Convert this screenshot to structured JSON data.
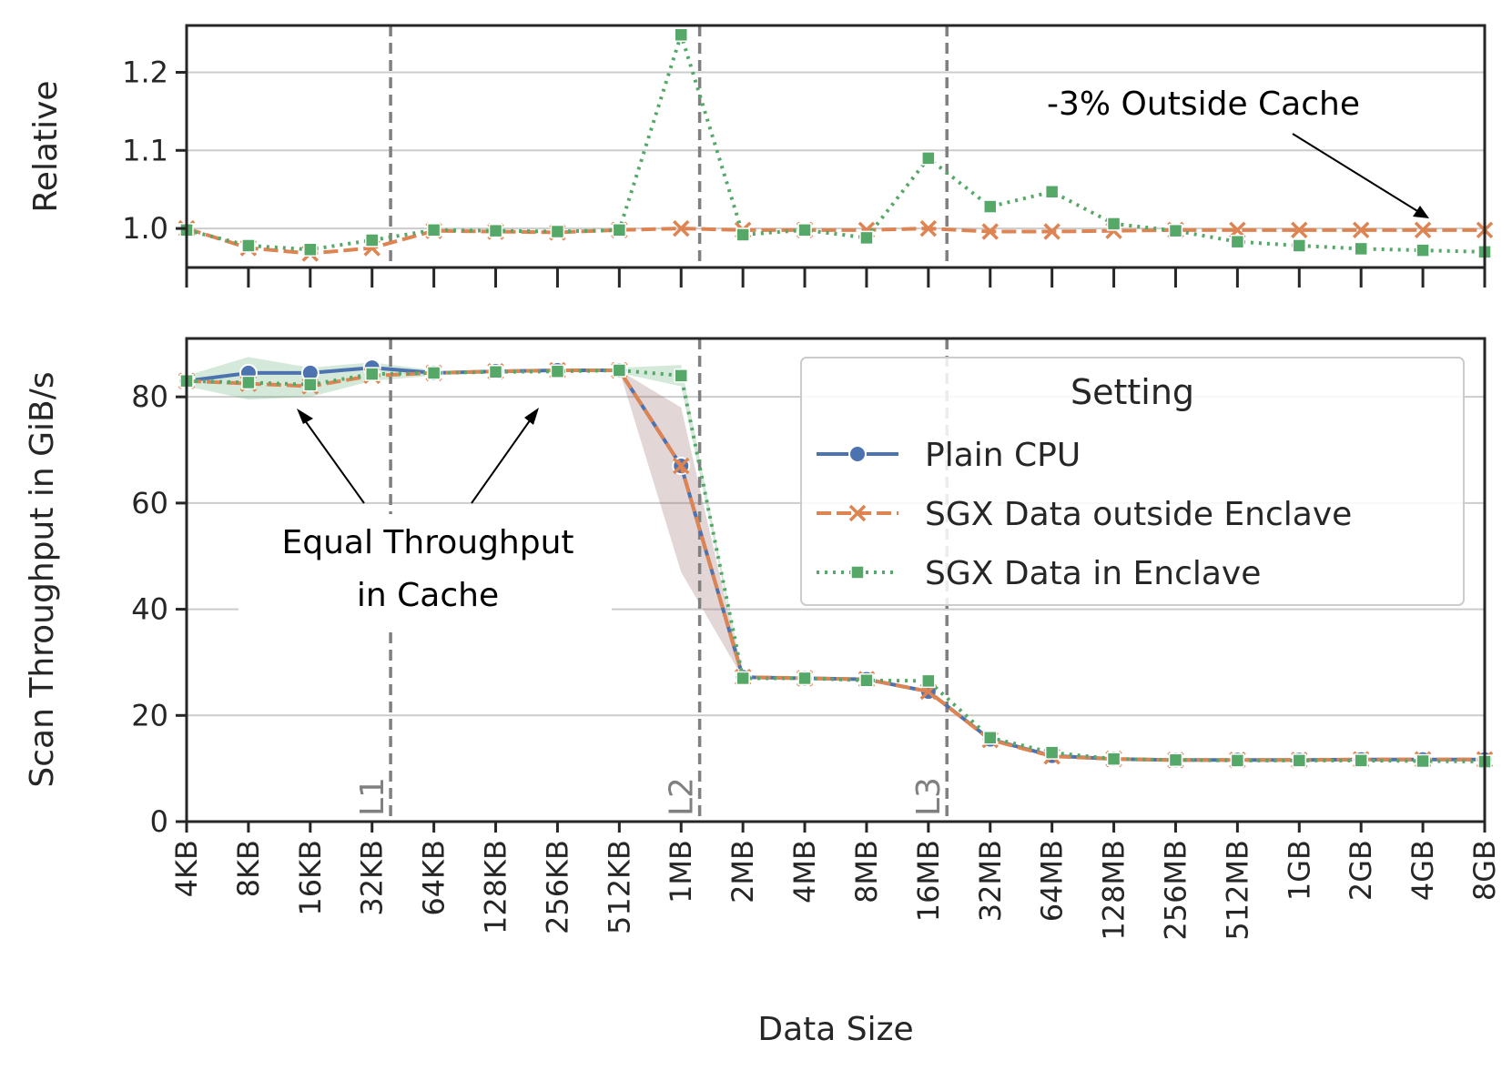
{
  "colors": {
    "plain": "#4c72b0",
    "outside": "#dd8452",
    "enclave": "#55a868",
    "cache_line": "#808080"
  },
  "chart_data": [
    {
      "type": "line",
      "panel": "top",
      "ylabel": "Relative",
      "ylim": [
        0.95,
        1.26
      ],
      "yticks": [
        1.0,
        1.1,
        1.2
      ],
      "ytick_labels": [
        "1.0",
        "1.1",
        "1.2"
      ],
      "grid": true,
      "series": [
        {
          "name": "SGX Data outside Enclave",
          "values": [
            1.0,
            0.975,
            0.968,
            0.975,
            0.997,
            0.996,
            0.995,
            0.998,
            1.0,
            0.998,
            0.998,
            0.998,
            1.0,
            0.996,
            0.996,
            0.997,
            0.998,
            0.998,
            0.998,
            0.998,
            0.998,
            0.998
          ]
        },
        {
          "name": "SGX Data in Enclave",
          "values": [
            0.998,
            0.978,
            0.973,
            0.985,
            0.998,
            0.997,
            0.996,
            0.998,
            1.248,
            0.992,
            0.998,
            0.988,
            1.09,
            1.028,
            1.047,
            1.006,
            0.997,
            0.983,
            0.978,
            0.974,
            0.972,
            0.97
          ]
        }
      ],
      "annotation": {
        "text": "-3% Outside Cache",
        "target_x": "4GB",
        "target_y": 1.0
      }
    },
    {
      "type": "line",
      "panel": "bottom",
      "title": "",
      "xlabel": "Data Size",
      "ylabel": "Scan Throughput in GiB/s",
      "ylim": [
        0,
        91
      ],
      "yticks": [
        0,
        20,
        40,
        60,
        80
      ],
      "ytick_labels": [
        "0",
        "20",
        "40",
        "60",
        "80"
      ],
      "grid": true,
      "categories": [
        "4KB",
        "8KB",
        "16KB",
        "32KB",
        "64KB",
        "128KB",
        "256KB",
        "512KB",
        "1MB",
        "2MB",
        "4MB",
        "8MB",
        "16MB",
        "32MB",
        "64MB",
        "128MB",
        "256MB",
        "512MB",
        "1GB",
        "2GB",
        "4GB",
        "8GB"
      ],
      "series": [
        {
          "name": "Plain CPU",
          "values": [
            83,
            84.5,
            84.5,
            85.5,
            84.5,
            84.8,
            85,
            85,
            67,
            27.2,
            27,
            26.8,
            24.5,
            15.5,
            12.4,
            11.8,
            11.6,
            11.6,
            11.6,
            11.7,
            11.7,
            11.7
          ]
        },
        {
          "name": "SGX Data outside Enclave",
          "values": [
            83,
            82.5,
            82,
            84,
            84.5,
            84.8,
            85,
            85,
            67,
            27.2,
            27,
            26.8,
            24.5,
            15.4,
            12.3,
            11.8,
            11.6,
            11.6,
            11.6,
            11.7,
            11.7,
            11.7
          ]
        },
        {
          "name": "SGX Data in Enclave",
          "values": [
            83,
            82.7,
            82.3,
            84.3,
            84.5,
            84.7,
            84.8,
            85,
            84,
            27,
            27,
            26.6,
            26.5,
            15.8,
            13,
            11.8,
            11.6,
            11.5,
            11.5,
            11.5,
            11.4,
            11.3
          ]
        }
      ],
      "cache_boundaries": [
        {
          "label": "L1",
          "after": "32KB"
        },
        {
          "label": "L2",
          "after": "1MB"
        },
        {
          "label": "L3",
          "after": "16MB"
        }
      ],
      "legend": {
        "title": "Setting",
        "position": "upper-right"
      },
      "annotation": {
        "lines": [
          "Equal Throughput",
          "in Cache"
        ],
        "targets": [
          "16KB",
          "256KB"
        ]
      }
    }
  ]
}
